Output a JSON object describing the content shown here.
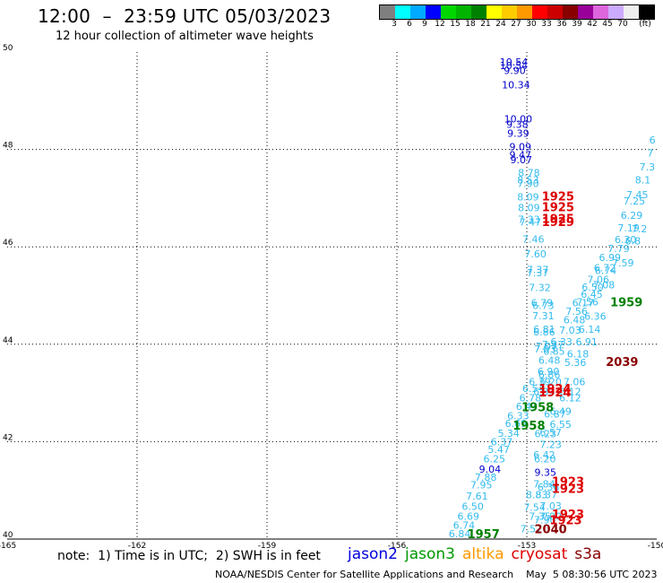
{
  "header": {
    "title": "12:00  –  23:59 UTC 05/03/2023",
    "subtitle": "12 hour collection of altimeter wave heights"
  },
  "colorbar": {
    "colors": [
      "#7f7f7f",
      "#00ffff",
      "#00aaff",
      "#0000ff",
      "#00d600",
      "#00b400",
      "#008000",
      "#ffff00",
      "#ffcc00",
      "#ff9900",
      "#ff0000",
      "#cc0000",
      "#880000",
      "#990099",
      "#dd66dd",
      "#ccaaff",
      "#eeeeee",
      "#000000"
    ],
    "labels": [
      "3",
      "6",
      "9",
      "12",
      "15",
      "18",
      "21",
      "24",
      "27",
      "30",
      "33",
      "36",
      "39",
      "42",
      "45",
      "70",
      "(ft)"
    ]
  },
  "chart_data": {
    "type": "scatter",
    "title": "12:00  –  23:59 UTC 05/03/2023",
    "subtitle": "12 hour collection of altimeter wave heights",
    "x_ticks": [
      "-165",
      "-162",
      "-159",
      "-156",
      "-153",
      "-150"
    ],
    "y_ticks": [
      "50",
      "48",
      "46",
      "44",
      "42",
      "40"
    ],
    "xlim": [
      -165,
      -150
    ],
    "ylim": [
      40,
      50
    ],
    "grid": true,
    "labels": [
      {
        "lon": -153.3,
        "lat": 49.72,
        "text": "10.54",
        "color": "#0000cc"
      },
      {
        "lon": -153.3,
        "lat": 49.65,
        "text": "10.54",
        "color": "#0000cc"
      },
      {
        "lon": -153.28,
        "lat": 49.55,
        "text": "9.90",
        "color": "#0000cc"
      },
      {
        "lon": -153.25,
        "lat": 49.25,
        "text": "10.34",
        "color": "#0000cc"
      },
      {
        "lon": -153.2,
        "lat": 48.55,
        "text": "10.00",
        "color": "#0000cc"
      },
      {
        "lon": -153.22,
        "lat": 48.44,
        "text": "9.38",
        "color": "#0000cc"
      },
      {
        "lon": -153.2,
        "lat": 48.26,
        "text": "9.39",
        "color": "#0000cc"
      },
      {
        "lon": -153.15,
        "lat": 47.98,
        "text": "9.09",
        "color": "#0000cc"
      },
      {
        "lon": -153.15,
        "lat": 47.82,
        "text": "9.47",
        "color": "#0000cc"
      },
      {
        "lon": -153.13,
        "lat": 47.72,
        "text": "9.07",
        "color": "#0000cc"
      },
      {
        "lon": -152.95,
        "lat": 47.45,
        "text": "8.78",
        "color": "#33bbee"
      },
      {
        "lon": -152.97,
        "lat": 47.3,
        "text": "8.53",
        "color": "#33bbee"
      },
      {
        "lon": -152.97,
        "lat": 47.23,
        "text": "7.90",
        "color": "#33bbee"
      },
      {
        "lon": -152.97,
        "lat": 46.95,
        "text": "8.09",
        "color": "#33bbee"
      },
      {
        "lon": -152.95,
        "lat": 46.73,
        "text": "8.09",
        "color": "#33bbee"
      },
      {
        "lon": -152.95,
        "lat": 46.49,
        "text": "7.33",
        "color": "#33bbee"
      },
      {
        "lon": -152.92,
        "lat": 46.44,
        "text": "7.47",
        "color": "#33bbee"
      },
      {
        "lon": -152.85,
        "lat": 46.09,
        "text": "7.46",
        "color": "#33bbee"
      },
      {
        "lon": -152.8,
        "lat": 45.78,
        "text": "7.60",
        "color": "#33bbee"
      },
      {
        "lon": -152.75,
        "lat": 45.46,
        "text": "7.37",
        "color": "#33bbee"
      },
      {
        "lon": -152.75,
        "lat": 45.4,
        "text": "7.37",
        "color": "#33bbee"
      },
      {
        "lon": -152.7,
        "lat": 45.09,
        "text": "7.32",
        "color": "#33bbee"
      },
      {
        "lon": -152.65,
        "lat": 44.78,
        "text": "6.79",
        "color": "#33bbee"
      },
      {
        "lon": -152.62,
        "lat": 44.72,
        "text": "6.73",
        "color": "#33bbee"
      },
      {
        "lon": -152.62,
        "lat": 44.51,
        "text": "7.31",
        "color": "#33bbee"
      },
      {
        "lon": -152.6,
        "lat": 44.24,
        "text": "6.81",
        "color": "#33bbee"
      },
      {
        "lon": -152.6,
        "lat": 44.18,
        "text": "6.86",
        "color": "#33bbee"
      },
      {
        "lon": -152.55,
        "lat": 43.89,
        "text": "7.07",
        "color": "#33bbee"
      },
      {
        "lon": -152.58,
        "lat": 43.83,
        "text": "7.03",
        "color": "#33bbee"
      },
      {
        "lon": -152.4,
        "lat": 43.92,
        "text": "7.37",
        "color": "#33bbee"
      },
      {
        "lon": -152.37,
        "lat": 43.78,
        "text": "6.85",
        "color": "#33bbee"
      },
      {
        "lon": -152.48,
        "lat": 43.6,
        "text": "6.48",
        "color": "#33bbee"
      },
      {
        "lon": -152.5,
        "lat": 43.37,
        "text": "6.90",
        "color": "#33bbee"
      },
      {
        "lon": -152.48,
        "lat": 43.31,
        "text": "6.86",
        "color": "#33bbee"
      },
      {
        "lon": -152.7,
        "lat": 43.16,
        "text": "6.39",
        "color": "#33bbee"
      },
      {
        "lon": -152.45,
        "lat": 43.16,
        "text": "6.20",
        "color": "#33bbee"
      },
      {
        "lon": -152.85,
        "lat": 43.02,
        "text": "6.54",
        "color": "#33bbee"
      },
      {
        "lon": -152.6,
        "lat": 42.96,
        "text": "6.33",
        "color": "#33bbee"
      },
      {
        "lon": -152.92,
        "lat": 42.83,
        "text": "6.78",
        "color": "#33bbee"
      },
      {
        "lon": -153.0,
        "lat": 42.65,
        "text": "6.43",
        "color": "#33bbee"
      },
      {
        "lon": -153.2,
        "lat": 42.46,
        "text": "6.33",
        "color": "#33bbee"
      },
      {
        "lon": -153.25,
        "lat": 42.3,
        "text": "6.69",
        "color": "#33bbee"
      },
      {
        "lon": -153.42,
        "lat": 42.1,
        "text": "5.34",
        "color": "#33bbee"
      },
      {
        "lon": -153.58,
        "lat": 41.92,
        "text": "6.37",
        "color": "#33bbee"
      },
      {
        "lon": -153.65,
        "lat": 41.77,
        "text": "5.47",
        "color": "#33bbee"
      },
      {
        "lon": -153.75,
        "lat": 41.57,
        "text": "6.25",
        "color": "#33bbee"
      },
      {
        "lon": -153.85,
        "lat": 41.36,
        "text": "9.04",
        "color": "#0000cc"
      },
      {
        "lon": -153.95,
        "lat": 41.2,
        "text": "7.88",
        "color": "#33bbee"
      },
      {
        "lon": -154.05,
        "lat": 41.04,
        "text": "7.95",
        "color": "#33bbee"
      },
      {
        "lon": -154.15,
        "lat": 40.81,
        "text": "7.61",
        "color": "#33bbee"
      },
      {
        "lon": -154.25,
        "lat": 40.6,
        "text": "6.50",
        "color": "#33bbee"
      },
      {
        "lon": -154.35,
        "lat": 40.4,
        "text": "6.69",
        "color": "#33bbee"
      },
      {
        "lon": -154.45,
        "lat": 40.21,
        "text": "6.74",
        "color": "#33bbee"
      },
      {
        "lon": -154.55,
        "lat": 40.04,
        "text": "6.84",
        "color": "#33bbee"
      },
      {
        "lon": -151.9,
        "lat": 43.16,
        "text": "7.06",
        "color": "#33bbee"
      },
      {
        "lon": -152.0,
        "lat": 42.96,
        "text": "6.12",
        "color": "#33bbee"
      },
      {
        "lon": -152.0,
        "lat": 42.83,
        "text": "6.12",
        "color": "#33bbee"
      },
      {
        "lon": -152.22,
        "lat": 42.55,
        "text": "6.49",
        "color": "#33bbee"
      },
      {
        "lon": -152.35,
        "lat": 42.5,
        "text": "6.87",
        "color": "#33bbee"
      },
      {
        "lon": -152.22,
        "lat": 42.28,
        "text": "6.55",
        "color": "#33bbee"
      },
      {
        "lon": -152.45,
        "lat": 42.12,
        "text": "6.57",
        "color": "#33bbee"
      },
      {
        "lon": -152.57,
        "lat": 42.09,
        "text": "6.23",
        "color": "#33bbee"
      },
      {
        "lon": -152.45,
        "lat": 41.87,
        "text": "7.23",
        "color": "#33bbee"
      },
      {
        "lon": -152.6,
        "lat": 41.66,
        "text": "6.42",
        "color": "#33bbee"
      },
      {
        "lon": -152.58,
        "lat": 41.57,
        "text": "6.20",
        "color": "#33bbee"
      },
      {
        "lon": -152.57,
        "lat": 41.3,
        "text": "9.35",
        "color": "#0000cc"
      },
      {
        "lon": -152.6,
        "lat": 41.06,
        "text": "7.84",
        "color": "#33bbee"
      },
      {
        "lon": -152.5,
        "lat": 40.99,
        "text": "6.36",
        "color": "#33bbee"
      },
      {
        "lon": -152.77,
        "lat": 40.84,
        "text": "8.83",
        "color": "#33bbee"
      },
      {
        "lon": -152.55,
        "lat": 40.84,
        "text": "8.37",
        "color": "#33bbee"
      },
      {
        "lon": -152.45,
        "lat": 40.61,
        "text": "7.03",
        "color": "#33bbee"
      },
      {
        "lon": -152.82,
        "lat": 40.58,
        "text": "7.54",
        "color": "#33bbee"
      },
      {
        "lon": -152.7,
        "lat": 40.4,
        "text": "7.35",
        "color": "#33bbee"
      },
      {
        "lon": -152.45,
        "lat": 40.4,
        "text": "7.00",
        "color": "#33bbee"
      },
      {
        "lon": -152.58,
        "lat": 40.32,
        "text": "7.90",
        "color": "#33bbee"
      },
      {
        "lon": -152.9,
        "lat": 40.14,
        "text": "7.57",
        "color": "#33bbee"
      },
      {
        "lon": -151.42,
        "lat": 44.5,
        "text": "6.36",
        "color": "#33bbee"
      },
      {
        "lon": -151.55,
        "lat": 44.24,
        "text": "6.14",
        "color": "#33bbee"
      },
      {
        "lon": -151.62,
        "lat": 43.98,
        "text": "6.91",
        "color": "#33bbee"
      },
      {
        "lon": -151.82,
        "lat": 43.73,
        "text": "6.18",
        "color": "#33bbee"
      },
      {
        "lon": -151.88,
        "lat": 43.55,
        "text": "5.36",
        "color": "#33bbee"
      },
      {
        "lon": -152.0,
        "lat": 44.22,
        "text": "7.03",
        "color": "#33bbee"
      },
      {
        "lon": -152.2,
        "lat": 43.98,
        "text": "6.33",
        "color": "#33bbee"
      },
      {
        "lon": -151.9,
        "lat": 44.43,
        "text": "6.48",
        "color": "#33bbee"
      },
      {
        "lon": -151.85,
        "lat": 44.6,
        "text": "7.56",
        "color": "#33bbee"
      },
      {
        "lon": -151.7,
        "lat": 44.78,
        "text": "6.17",
        "color": "#33bbee"
      },
      {
        "lon": -151.6,
        "lat": 44.8,
        "text": "7.56",
        "color": "#33bbee"
      },
      {
        "lon": -151.5,
        "lat": 44.95,
        "text": "6.45",
        "color": "#33bbee"
      },
      {
        "lon": -151.48,
        "lat": 45.1,
        "text": "6.50",
        "color": "#33bbee"
      },
      {
        "lon": -151.35,
        "lat": 45.26,
        "text": "7.06",
        "color": "#33bbee"
      },
      {
        "lon": -151.22,
        "lat": 45.15,
        "text": "7.08",
        "color": "#33bbee"
      },
      {
        "lon": -151.2,
        "lat": 45.5,
        "text": "6.72",
        "color": "#33bbee"
      },
      {
        "lon": -151.18,
        "lat": 45.44,
        "text": "6.74",
        "color": "#33bbee"
      },
      {
        "lon": -151.08,
        "lat": 45.71,
        "text": "6.99",
        "color": "#33bbee"
      },
      {
        "lon": -150.88,
        "lat": 45.89,
        "text": "7.79",
        "color": "#33bbee"
      },
      {
        "lon": -150.78,
        "lat": 45.6,
        "text": "7.59",
        "color": "#33bbee"
      },
      {
        "lon": -150.72,
        "lat": 46.08,
        "text": "6.30",
        "color": "#33bbee"
      },
      {
        "lon": -150.65,
        "lat": 46.32,
        "text": "7.19",
        "color": "#33bbee"
      },
      {
        "lon": -150.58,
        "lat": 46.57,
        "text": "6.29",
        "color": "#33bbee"
      },
      {
        "lon": -150.52,
        "lat": 46.87,
        "text": "7.25",
        "color": "#33bbee"
      },
      {
        "lon": -150.45,
        "lat": 47.0,
        "text": "7.45",
        "color": "#33bbee"
      },
      {
        "lon": -150.32,
        "lat": 47.3,
        "text": "8.1",
        "color": "#33bbee"
      },
      {
        "lon": -150.22,
        "lat": 47.57,
        "text": "7.3",
        "color": "#33bbee"
      },
      {
        "lon": -150.15,
        "lat": 47.85,
        "text": "7",
        "color": "#33bbee"
      },
      {
        "lon": -150.1,
        "lat": 48.12,
        "text": "6",
        "color": "#33bbee"
      },
      {
        "lon": -150.4,
        "lat": 46.3,
        "text": "7.2",
        "color": "#33bbee"
      },
      {
        "lon": -150.55,
        "lat": 46.05,
        "text": "6.8",
        "color": "#33bbee"
      },
      {
        "lon": -152.28,
        "lat": 46.95,
        "text": "1925",
        "color": "#dd0000",
        "big": true
      },
      {
        "lon": -152.28,
        "lat": 46.73,
        "text": "1925",
        "color": "#dd0000",
        "big": true
      },
      {
        "lon": -152.28,
        "lat": 46.49,
        "text": "1925",
        "color": "#dd0000",
        "big": true
      },
      {
        "lon": -152.28,
        "lat": 46.43,
        "text": "1929",
        "color": "#dd0000",
        "big": true
      },
      {
        "lon": -150.7,
        "lat": 44.78,
        "text": "1959",
        "color": "#008000",
        "big": true
      },
      {
        "lon": -150.8,
        "lat": 43.55,
        "text": "2039",
        "color": "#880000",
        "big": true
      },
      {
        "lon": -152.35,
        "lat": 43.0,
        "text": "1924",
        "color": "#dd0000",
        "big": true
      },
      {
        "lon": -152.35,
        "lat": 42.93,
        "text": "1924",
        "color": "#dd0000",
        "big": true
      },
      {
        "lon": -152.75,
        "lat": 42.62,
        "text": "1958",
        "color": "#008000",
        "big": true
      },
      {
        "lon": -152.95,
        "lat": 42.25,
        "text": "1958",
        "color": "#008000",
        "big": true
      },
      {
        "lon": -152.05,
        "lat": 41.1,
        "text": "1923",
        "color": "#dd0000",
        "big": true
      },
      {
        "lon": -152.05,
        "lat": 40.95,
        "text": "1923",
        "color": "#dd0000",
        "big": true
      },
      {
        "lon": -152.05,
        "lat": 40.42,
        "text": "1923",
        "color": "#dd0000",
        "big": true
      },
      {
        "lon": -152.1,
        "lat": 40.3,
        "text": "1923",
        "color": "#dd0000",
        "big": true
      },
      {
        "lon": -152.45,
        "lat": 40.12,
        "text": "2040",
        "color": "#880000",
        "big": true
      },
      {
        "lon": -154.0,
        "lat": 40.02,
        "text": "1957",
        "color": "#008000",
        "big": true
      }
    ]
  },
  "footer": {
    "note": "note:  1) Time is in UTC;  2) SWH is in feet",
    "legend": [
      {
        "label": "jason2",
        "color": "#0000dd"
      },
      {
        "label": "jason3",
        "color": "#009900"
      },
      {
        "label": "altika",
        "color": "#ff9900"
      },
      {
        "label": "cryosat",
        "color": "#dd0000"
      },
      {
        "label": "s3a",
        "color": "#880000"
      }
    ],
    "credit": "NOAA/NESDIS Center for Satellite Applications and Research    May  5 08:30:56 UTC 2023"
  }
}
